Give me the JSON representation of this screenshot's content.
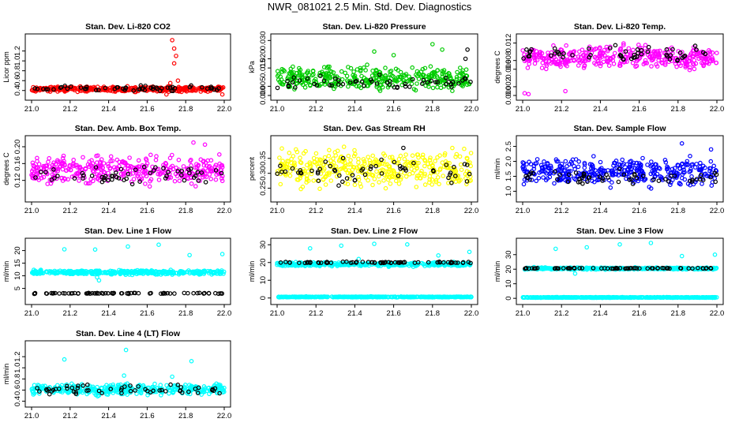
{
  "title": "NWR_081021  2.5 Min. Std. Dev. Diagnostics",
  "chart_data": [
    {
      "type": "scatter",
      "title": "Stan. Dev. Li-820 CO2",
      "ylabel": "Licor ppm",
      "xlim": [
        21.0,
        22.0
      ],
      "ylim": [
        0.3,
        1.45
      ],
      "xticks": [
        "21.0",
        "21.2",
        "21.4",
        "21.6",
        "21.8",
        "22.0"
      ],
      "yticks": [
        "0.4",
        "0.6",
        "0.8",
        "1.0",
        "1.2"
      ],
      "series": [
        {
          "color": "#ff0000",
          "band": [
            0.36,
            0.5
          ],
          "n": 400,
          "outliers": [
            [
              21.73,
              1.42
            ],
            [
              21.74,
              1.25
            ],
            [
              21.75,
              1.1
            ],
            [
              21.74,
              0.95
            ],
            [
              21.76,
              0.6
            ],
            [
              21.72,
              0.55
            ],
            [
              21.7,
              0.32
            ],
            [
              21.99,
              0.32
            ]
          ]
        },
        {
          "color": "#000000",
          "band": [
            0.37,
            0.52
          ],
          "n": 55
        }
      ]
    },
    {
      "type": "scatter",
      "title": "Stan. Dev. Li-820 Pressure",
      "ylabel": "kPa",
      "xlim": [
        21.0,
        22.0
      ],
      "ylim": [
        0.0,
        0.031
      ],
      "xticks": [
        "21.0",
        "21.2",
        "21.4",
        "21.6",
        "21.8",
        "22.0"
      ],
      "yticks": [
        "0.000",
        "0.005",
        "0.015",
        "0.020",
        "0.030"
      ],
      "series": [
        {
          "color": "#00cc00",
          "band": [
            0.0,
            0.018
          ],
          "n": 380,
          "outliers": [
            [
              21.5,
              0.024
            ],
            [
              21.8,
              0.028
            ],
            [
              21.85,
              0.025
            ],
            [
              21.6,
              0.022
            ]
          ]
        },
        {
          "color": "#000000",
          "band": [
            0.002,
            0.012
          ],
          "n": 55,
          "outliers": [
            [
              21.98,
              0.025
            ],
            [
              21.97,
              0.02
            ]
          ]
        }
      ]
    },
    {
      "type": "scatter",
      "title": "Stan. Dev. Li-820 Temp.",
      "ylabel": "degrees C",
      "xlim": [
        21.0,
        22.0
      ],
      "ylim": [
        0.0,
        0.013
      ],
      "xticks": [
        "21.0",
        "21.2",
        "21.4",
        "21.6",
        "21.8",
        "22.0"
      ],
      "yticks": [
        "0.000",
        "0.002",
        "0.006",
        "0.008",
        "0.012"
      ],
      "series": [
        {
          "color": "#ff00ff",
          "band": [
            0.005,
            0.0125
          ],
          "n": 380,
          "outliers": [
            [
              21.01,
              0.0005
            ],
            [
              21.03,
              0.0003
            ],
            [
              21.22,
              0.001
            ]
          ]
        },
        {
          "color": "#000000",
          "band": [
            0.007,
            0.012
          ],
          "n": 55
        }
      ]
    },
    {
      "type": "scatter",
      "title": "Stan. Dev. Amb. Box Temp.",
      "ylabel": "degrees C",
      "xlim": [
        21.0,
        22.0
      ],
      "ylim": [
        0.08,
        0.215
      ],
      "xticks": [
        "21.0",
        "21.2",
        "21.4",
        "21.6",
        "21.8",
        "22.0"
      ],
      "yticks": [
        "0.12",
        "0.16",
        "0.20"
      ],
      "series": [
        {
          "color": "#ff00ff",
          "band": [
            0.1,
            0.19
          ],
          "n": 380,
          "outliers": [
            [
              21.84,
              0.21
            ],
            [
              21.9,
              0.205
            ]
          ]
        },
        {
          "color": "#000000",
          "band": [
            0.1,
            0.17
          ],
          "n": 55
        }
      ]
    },
    {
      "type": "scatter",
      "title": "Stan. Dev. Gas Stream RH",
      "ylabel": "percent",
      "xlim": [
        21.0,
        22.0
      ],
      "ylim": [
        0.22,
        0.41
      ],
      "xticks": [
        "21.0",
        "21.2",
        "21.4",
        "21.6",
        "21.8",
        "22.0"
      ],
      "yticks": [
        "0.25",
        "0.30",
        "0.35"
      ],
      "series": [
        {
          "color": "#ffff00",
          "band": [
            0.23,
            0.4
          ],
          "n": 380
        },
        {
          "color": "#000000",
          "band": [
            0.24,
            0.37
          ],
          "n": 55,
          "outliers": [
            [
              21.65,
              0.385
            ]
          ]
        }
      ]
    },
    {
      "type": "scatter",
      "title": "Stan. Dev. Sample Flow",
      "ylabel": "ml/min",
      "xlim": [
        21.0,
        22.0
      ],
      "ylim": [
        0.8,
        2.7
      ],
      "xticks": [
        "21.0",
        "21.2",
        "21.4",
        "21.6",
        "21.8",
        "22.0"
      ],
      "yticks": [
        "1.0",
        "1.5",
        "2.0",
        "2.5"
      ],
      "series": [
        {
          "color": "#0000ff",
          "band": [
            1.0,
            2.3
          ],
          "n": 380,
          "outliers": [
            [
              21.82,
              2.6
            ],
            [
              21.97,
              2.4
            ]
          ]
        },
        {
          "color": "#000000",
          "band": [
            1.1,
            1.8
          ],
          "n": 55
        }
      ]
    },
    {
      "type": "scatter",
      "title": "Stan. Dev. Line 1 Flow",
      "ylabel": "ml/min",
      "xlim": [
        21.0,
        22.0
      ],
      "ylim": [
        0.5,
        23
      ],
      "xticks": [
        "21.0",
        "21.2",
        "21.4",
        "21.6",
        "21.8",
        "22.0"
      ],
      "yticks": [
        "5",
        "10",
        "15",
        "20"
      ],
      "series": [
        {
          "color": "#00ffff",
          "band": [
            10.2,
            12.5
          ],
          "n": 420,
          "outliers": [
            [
              21.17,
              20.5
            ],
            [
              21.33,
              20.4
            ],
            [
              21.5,
              21.6
            ],
            [
              21.66,
              22.3
            ],
            [
              21.82,
              18.2
            ],
            [
              21.99,
              18.6
            ],
            [
              21.35,
              8.2
            ],
            [
              21.34,
              9.4
            ]
          ]
        },
        {
          "color": "#000000",
          "band": [
            2.8,
            3.3
          ],
          "n": 70
        }
      ]
    },
    {
      "type": "scatter",
      "title": "Stan. Dev. Line 2 Flow",
      "ylabel": "ml/min",
      "xlim": [
        21.0,
        22.0
      ],
      "ylim": [
        -1,
        31
      ],
      "xticks": [
        "21.0",
        "21.2",
        "21.4",
        "21.6",
        "21.8",
        "22.0"
      ],
      "yticks": [
        "0",
        "10",
        "20",
        "30"
      ],
      "series": [
        {
          "color": "#00ffff",
          "band": [
            17.5,
            20.5
          ],
          "n": 380,
          "outliers": [
            [
              21.17,
              28
            ],
            [
              21.33,
              29.5
            ],
            [
              21.5,
              30.5
            ],
            [
              21.67,
              30.2
            ],
            [
              21.83,
              24
            ],
            [
              21.99,
              26
            ],
            [
              21.42,
              22
            ]
          ]
        },
        {
          "color": "#00ffff",
          "band": [
            0.3,
            0.9
          ],
          "n": 420
        },
        {
          "color": "#000000",
          "band": [
            19.5,
            20.6
          ],
          "n": 70
        }
      ]
    },
    {
      "type": "scatter",
      "title": "Stan. Dev. Line 3 Flow",
      "ylabel": "ml/min",
      "xlim": [
        21.0,
        22.0
      ],
      "ylim": [
        -1,
        38
      ],
      "xticks": [
        "21.0",
        "21.2",
        "21.4",
        "21.6",
        "21.8",
        "22.0"
      ],
      "yticks": [
        "0",
        "10",
        "20",
        "30"
      ],
      "series": [
        {
          "color": "#00ffff",
          "band": [
            19.5,
            21.5
          ],
          "n": 380,
          "outliers": [
            [
              21.17,
              34
            ],
            [
              21.33,
              35
            ],
            [
              21.5,
              37
            ],
            [
              21.66,
              38
            ],
            [
              21.82,
              29
            ],
            [
              21.99,
              30
            ],
            [
              21.27,
              17
            ]
          ]
        },
        {
          "color": "#00ffff",
          "band": [
            0.3,
            0.9
          ],
          "n": 420
        },
        {
          "color": "#000000",
          "band": [
            20.2,
            21.0
          ],
          "n": 70
        }
      ]
    },
    {
      "type": "scatter",
      "title": "Stan. Dev. Line 4 (LT) Flow",
      "ylabel": "ml/min",
      "xlim": [
        21.0,
        22.0
      ],
      "ylim": [
        0.38,
        1.4
      ],
      "xticks": [
        "21.0",
        "21.2",
        "21.4",
        "21.6",
        "21.8",
        "22.0"
      ],
      "yticks": [
        "0.4",
        "0.6",
        "0.8",
        "1.0",
        "1.2"
      ],
      "series": [
        {
          "color": "#00ffff",
          "band": [
            0.48,
            0.75
          ],
          "n": 380,
          "outliers": [
            [
              21.17,
              1.15
            ],
            [
              21.49,
              1.32
            ],
            [
              21.83,
              1.12
            ],
            [
              21.48,
              0.86
            ],
            [
              21.73,
              0.84
            ]
          ]
        },
        {
          "color": "#000000",
          "band": [
            0.5,
            0.72
          ],
          "n": 55
        }
      ]
    }
  ]
}
